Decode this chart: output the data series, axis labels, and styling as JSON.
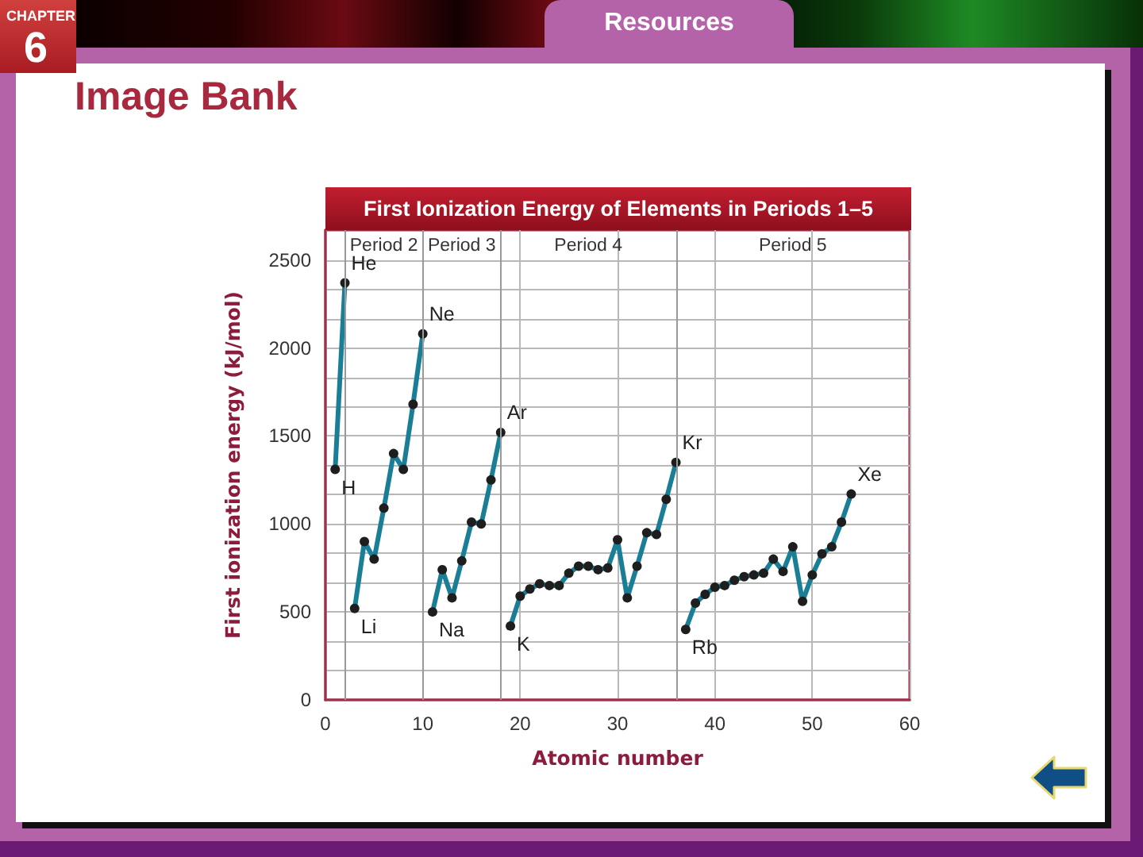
{
  "chart_data": {
    "type": "line",
    "title": "First Ionization Energy of Elements in Periods 1–5",
    "xlabel": "Atomic number",
    "ylabel": "First ionization energy (kJ/mol)",
    "annotations": [
      "CHAPTER",
      "6",
      "Resources",
      "Image Bank",
      "Period 2",
      "Period 3",
      "Period 4",
      "Period 5",
      {
        "text": "H",
        "x": 1,
        "y": 1310
      },
      {
        "text": "He",
        "x": 2,
        "y": 2370
      },
      {
        "text": "Li",
        "x": 3,
        "y": 520
      },
      {
        "text": "Ne",
        "x": 10,
        "y": 2080
      },
      {
        "text": "Na",
        "x": 11,
        "y": 500
      },
      {
        "text": "Ar",
        "x": 18,
        "y": 1520
      },
      {
        "text": "K",
        "x": 19,
        "y": 420
      },
      {
        "text": "Kr",
        "x": 36,
        "y": 1350
      },
      {
        "text": "Rb",
        "x": 37,
        "y": 400
      },
      {
        "text": "Xe",
        "x": 54,
        "y": 1170
      }
    ],
    "series": [
      {
        "color": "#1a7f96",
        "x": [
          1,
          2
        ],
        "values": [
          1310,
          2370
        ]
      },
      {
        "color": "#1a7f96",
        "x": [
          3,
          4,
          5,
          6,
          7,
          8,
          9,
          10
        ],
        "values": [
          520,
          900,
          800,
          1090,
          1400,
          1310,
          1680,
          2080
        ]
      },
      {
        "color": "#1a7f96",
        "x": [
          11,
          12,
          13,
          14,
          15,
          16,
          17,
          18
        ],
        "values": [
          500,
          740,
          580,
          790,
          1010,
          1000,
          1250,
          1520
        ]
      },
      {
        "color": "#1a7f96",
        "x": [
          19,
          20,
          21,
          22,
          23,
          24,
          25,
          26,
          27,
          28,
          29,
          30,
          31,
          32,
          33,
          34,
          35,
          36
        ],
        "values": [
          420,
          590,
          630,
          660,
          650,
          650,
          720,
          760,
          760,
          740,
          750,
          910,
          580,
          760,
          950,
          940,
          1140,
          1350
        ]
      },
      {
        "color": "#1a7f96",
        "x": [
          37,
          38,
          39,
          40,
          41,
          42,
          43,
          44,
          45,
          46,
          47,
          48,
          49,
          50,
          51,
          52,
          53,
          54
        ],
        "values": [
          400,
          550,
          600,
          640,
          650,
          680,
          700,
          710,
          720,
          800,
          730,
          870,
          560,
          710,
          830,
          870,
          1010,
          1170
        ]
      }
    ],
    "xlim": [
      0,
      60
    ],
    "ylim": [
      0,
      2670
    ],
    "xticks": [
      0,
      10,
      20,
      30,
      40,
      50,
      60
    ],
    "yticks": [
      0,
      {
        "value": 166.7,
        "label": null
      },
      {
        "value": 333.3,
        "label": null
      },
      500,
      {
        "value": 666.7,
        "label": null
      },
      {
        "value": 833.3,
        "label": null
      },
      1000,
      {
        "value": 1166.7,
        "label": null
      },
      {
        "value": 1333.3,
        "label": null
      },
      1500,
      {
        "value": 1666.7,
        "label": null
      },
      {
        "value": 1833.3,
        "label": null
      },
      2000,
      {
        "value": 2166.7,
        "label": null
      },
      {
        "value": 2333.3,
        "label": null
      },
      2500
    ],
    "grid": true,
    "ref_lines": [
      {
        "axis": "x",
        "value": 2,
        "color": "#9a9a9a"
      },
      {
        "axis": "x",
        "value": 10,
        "color": "#9a9a9a"
      },
      {
        "axis": "x",
        "value": 18,
        "color": "#9a9a9a"
      },
      {
        "axis": "x",
        "value": 36,
        "color": "#9a9a9a"
      }
    ],
    "marker": "circle",
    "line_style": "solid"
  }
}
